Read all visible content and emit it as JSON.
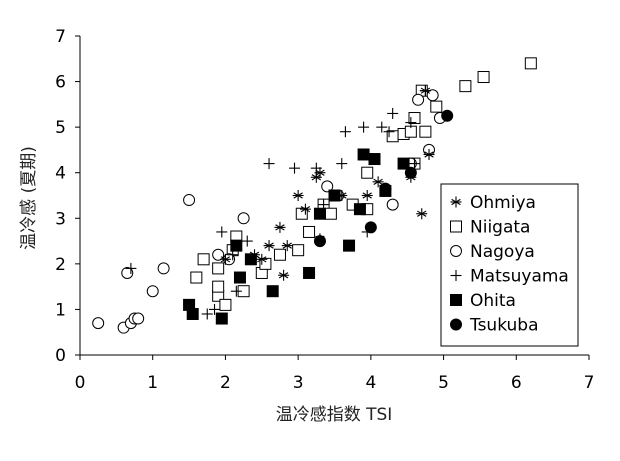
{
  "chart_data": {
    "type": "scatter",
    "xlabel": "温冷感指数 TSI",
    "ylabel": "温冷感 (夏期)",
    "xlim": [
      0,
      7
    ],
    "ylim": [
      0,
      7
    ],
    "x_ticks": [
      "0",
      "1",
      "2",
      "3",
      "4",
      "5",
      "6",
      "7"
    ],
    "y_ticks": [
      "0",
      "1",
      "2",
      "3",
      "4",
      "5",
      "6",
      "7"
    ],
    "grid": false,
    "legend_position": "right",
    "series": [
      {
        "name": "Ohmiya",
        "marker": "asterisk",
        "points": [
          [
            2.0,
            2.1
          ],
          [
            2.4,
            2.2
          ],
          [
            2.6,
            2.4
          ],
          [
            2.5,
            2.1
          ],
          [
            2.85,
            2.4
          ],
          [
            2.8,
            1.75
          ],
          [
            2.75,
            2.8
          ],
          [
            3.0,
            3.5
          ],
          [
            3.1,
            3.2
          ],
          [
            3.25,
            3.9
          ],
          [
            3.3,
            4.0
          ],
          [
            3.3,
            2.55
          ],
          [
            3.6,
            3.5
          ],
          [
            3.95,
            3.5
          ],
          [
            4.1,
            3.8
          ],
          [
            4.55,
            3.9
          ],
          [
            4.7,
            3.1
          ],
          [
            4.8,
            4.4
          ],
          [
            4.75,
            5.8
          ]
        ]
      },
      {
        "name": "Niigata",
        "marker": "square-open",
        "points": [
          [
            1.6,
            1.7
          ],
          [
            1.7,
            2.1
          ],
          [
            1.9,
            1.9
          ],
          [
            1.9,
            1.3
          ],
          [
            1.9,
            1.5
          ],
          [
            2.0,
            1.1
          ],
          [
            2.1,
            2.3
          ],
          [
            2.15,
            2.6
          ],
          [
            2.25,
            1.4
          ],
          [
            2.5,
            1.8
          ],
          [
            2.55,
            2.0
          ],
          [
            2.75,
            2.2
          ],
          [
            3.0,
            2.3
          ],
          [
            3.05,
            3.1
          ],
          [
            3.15,
            2.7
          ],
          [
            3.35,
            3.3
          ],
          [
            3.45,
            3.1
          ],
          [
            3.75,
            3.3
          ],
          [
            3.95,
            3.2
          ],
          [
            3.95,
            4.0
          ],
          [
            4.3,
            4.8
          ],
          [
            4.45,
            4.85
          ],
          [
            4.55,
            4.9
          ],
          [
            4.6,
            5.2
          ],
          [
            4.7,
            5.8
          ],
          [
            4.75,
            4.9
          ],
          [
            4.9,
            5.45
          ],
          [
            5.3,
            5.9
          ],
          [
            5.55,
            6.1
          ],
          [
            6.2,
            6.4
          ],
          [
            4.6,
            4.2
          ]
        ]
      },
      {
        "name": "Nagoya",
        "marker": "circle-open",
        "points": [
          [
            0.25,
            0.7
          ],
          [
            0.6,
            0.6
          ],
          [
            0.7,
            0.7
          ],
          [
            0.75,
            0.8
          ],
          [
            0.8,
            0.8
          ],
          [
            0.65,
            1.8
          ],
          [
            1.0,
            1.4
          ],
          [
            1.15,
            1.9
          ],
          [
            1.5,
            3.4
          ],
          [
            1.9,
            2.2
          ],
          [
            2.05,
            2.1
          ],
          [
            2.25,
            3.0
          ],
          [
            3.4,
            3.7
          ],
          [
            3.55,
            3.5
          ],
          [
            4.3,
            3.3
          ],
          [
            4.55,
            4.2
          ],
          [
            4.8,
            4.5
          ],
          [
            4.65,
            5.6
          ],
          [
            4.85,
            5.7
          ],
          [
            4.95,
            5.2
          ]
        ]
      },
      {
        "name": "Matsuyama",
        "marker": "plus",
        "points": [
          [
            0.7,
            1.9
          ],
          [
            1.75,
            0.9
          ],
          [
            1.85,
            1.0
          ],
          [
            1.95,
            2.7
          ],
          [
            2.1,
            2.2
          ],
          [
            2.15,
            1.4
          ],
          [
            2.3,
            2.5
          ],
          [
            2.6,
            4.2
          ],
          [
            2.95,
            4.1
          ],
          [
            3.25,
            4.1
          ],
          [
            3.35,
            3.3
          ],
          [
            3.6,
            4.2
          ],
          [
            3.65,
            4.9
          ],
          [
            3.9,
            5.0
          ],
          [
            3.95,
            2.7
          ],
          [
            4.15,
            5.0
          ],
          [
            4.25,
            4.9
          ],
          [
            4.3,
            5.3
          ],
          [
            4.55,
            5.1
          ],
          [
            4.6,
            4.2
          ],
          [
            4.75,
            5.8
          ]
        ]
      },
      {
        "name": "Ohita",
        "marker": "square-filled",
        "points": [
          [
            1.5,
            1.1
          ],
          [
            1.55,
            0.9
          ],
          [
            1.95,
            0.8
          ],
          [
            2.15,
            2.4
          ],
          [
            2.2,
            1.7
          ],
          [
            2.35,
            2.1
          ],
          [
            2.65,
            1.4
          ],
          [
            3.15,
            1.8
          ],
          [
            3.3,
            3.1
          ],
          [
            3.5,
            3.5
          ],
          [
            3.7,
            2.4
          ],
          [
            3.85,
            3.2
          ],
          [
            3.9,
            4.4
          ],
          [
            4.05,
            4.3
          ],
          [
            4.2,
            3.6
          ],
          [
            4.45,
            4.2
          ]
        ]
      },
      {
        "name": "Tsukuba",
        "marker": "circle-filled",
        "points": [
          [
            3.3,
            2.5
          ],
          [
            4.0,
            2.8
          ],
          [
            4.2,
            3.65
          ],
          [
            4.55,
            4.0
          ],
          [
            5.05,
            5.25
          ]
        ]
      }
    ]
  }
}
